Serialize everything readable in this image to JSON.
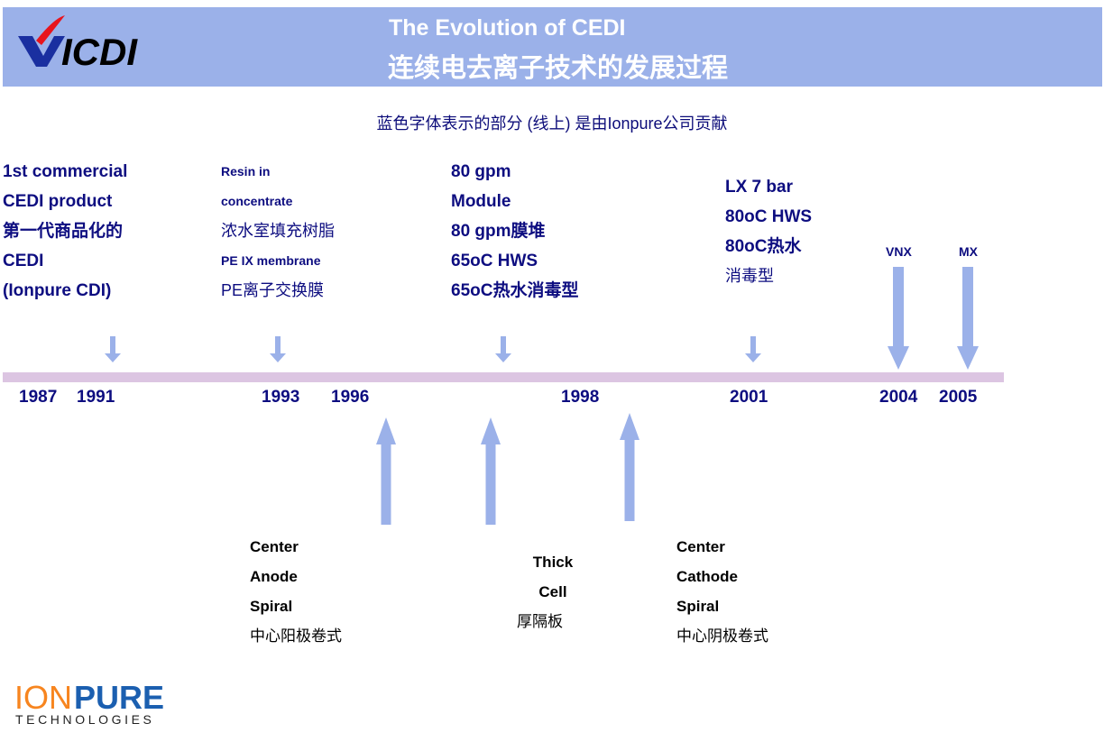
{
  "header": {
    "logo_text": "VICDI",
    "title_en": "The Evolution of CEDI",
    "title_zh": "连续电去离子技术的发展过程"
  },
  "subtitle": "蓝色字体表示的部分 (线上) 是由Ionpure公司贡献",
  "above_events": [
    {
      "lines": [
        "1st commercial",
        "CEDI product",
        "第一代商品化的",
        "CEDI",
        "(Ionpure CDI)"
      ]
    },
    {
      "lines": [
        "Resin in",
        "concentrate",
        "浓水室填充树脂",
        "PE IX membrane",
        "PE离子交换膜"
      ]
    },
    {
      "lines": [
        "80 gpm",
        "Module",
        "80 gpm膜堆",
        "65oC HWS",
        "65oC热水消毒型"
      ]
    },
    {
      "lines": [
        "LX 7 bar",
        "80oC HWS",
        "80oC热水",
        "消毒型"
      ]
    },
    {
      "lines": [
        "VNX"
      ]
    },
    {
      "lines": [
        "MX"
      ]
    }
  ],
  "years": [
    "1987",
    "1991",
    "1993",
    "1996",
    "1998",
    "2001",
    "2004",
    "2005"
  ],
  "below_events": [
    {
      "lines": [
        "Center",
        "Anode",
        "Spiral",
        "中心阳极卷式"
      ]
    },
    {
      "lines": [
        "Thick",
        "Cell",
        "厚隔板"
      ]
    },
    {
      "lines": [
        "Center",
        "Cathode",
        "Spiral",
        "中心阴极卷式"
      ]
    }
  ],
  "footer_logo": {
    "brand_orange": "ION",
    "brand_blue": "PURE",
    "tagline": "TECHNOLOGIES"
  },
  "colors": {
    "header": "#9bb1e9",
    "arrow": "#9bb1e9",
    "timeline": "#dcc5e2",
    "ionpure_text": "#0d0d80",
    "logo_orange": "#f7851f",
    "logo_blue": "#1b5fb0"
  }
}
